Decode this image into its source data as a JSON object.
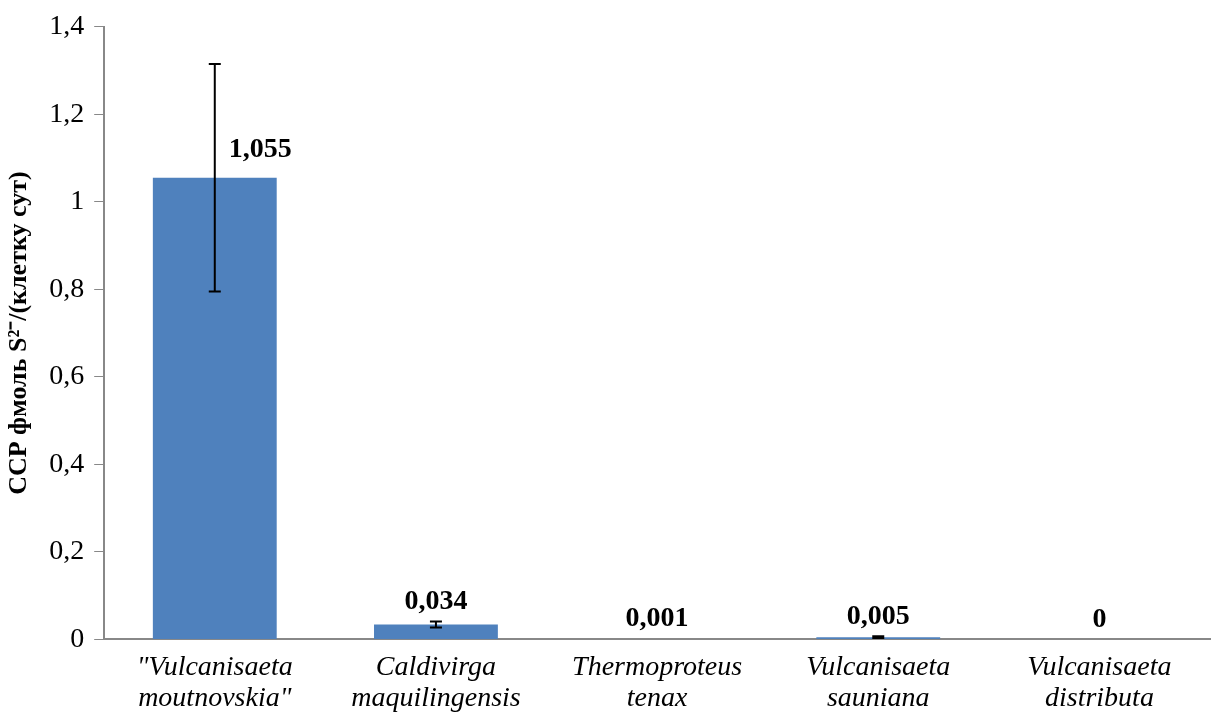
{
  "chart_data": {
    "type": "bar",
    "ylabel": "ССР фмоль S²⁻/(клетку сут)",
    "categories": [
      "\"Vulcanisaeta moutnovskia\"",
      "Caldivirga maquilingensis",
      "Thermoproteus tenax",
      "Vulcanisaeta sauniana",
      "Vulcanisaeta distributa"
    ],
    "values": [
      1.055,
      0.034,
      0.001,
      0.005,
      0
    ],
    "errors": [
      0.26,
      0.007,
      null,
      0.002,
      null
    ],
    "value_labels": [
      "1,055",
      "0,034",
      "0,001",
      "0,005",
      "0"
    ],
    "color": "#4f81bd",
    "ylim": [
      0,
      1.4
    ],
    "yticks": [
      0,
      {
        "value": 0.2,
        "label": "0,2"
      },
      {
        "value": 0.4,
        "label": "0,4"
      },
      {
        "value": 0.6,
        "label": "0,6"
      },
      {
        "value": 0.8,
        "label": "0,8"
      },
      1,
      {
        "value": 1.2,
        "label": "1,2"
      },
      {
        "value": 1.4,
        "label": "1,4"
      }
    ],
    "grid": false,
    "legend": false
  }
}
